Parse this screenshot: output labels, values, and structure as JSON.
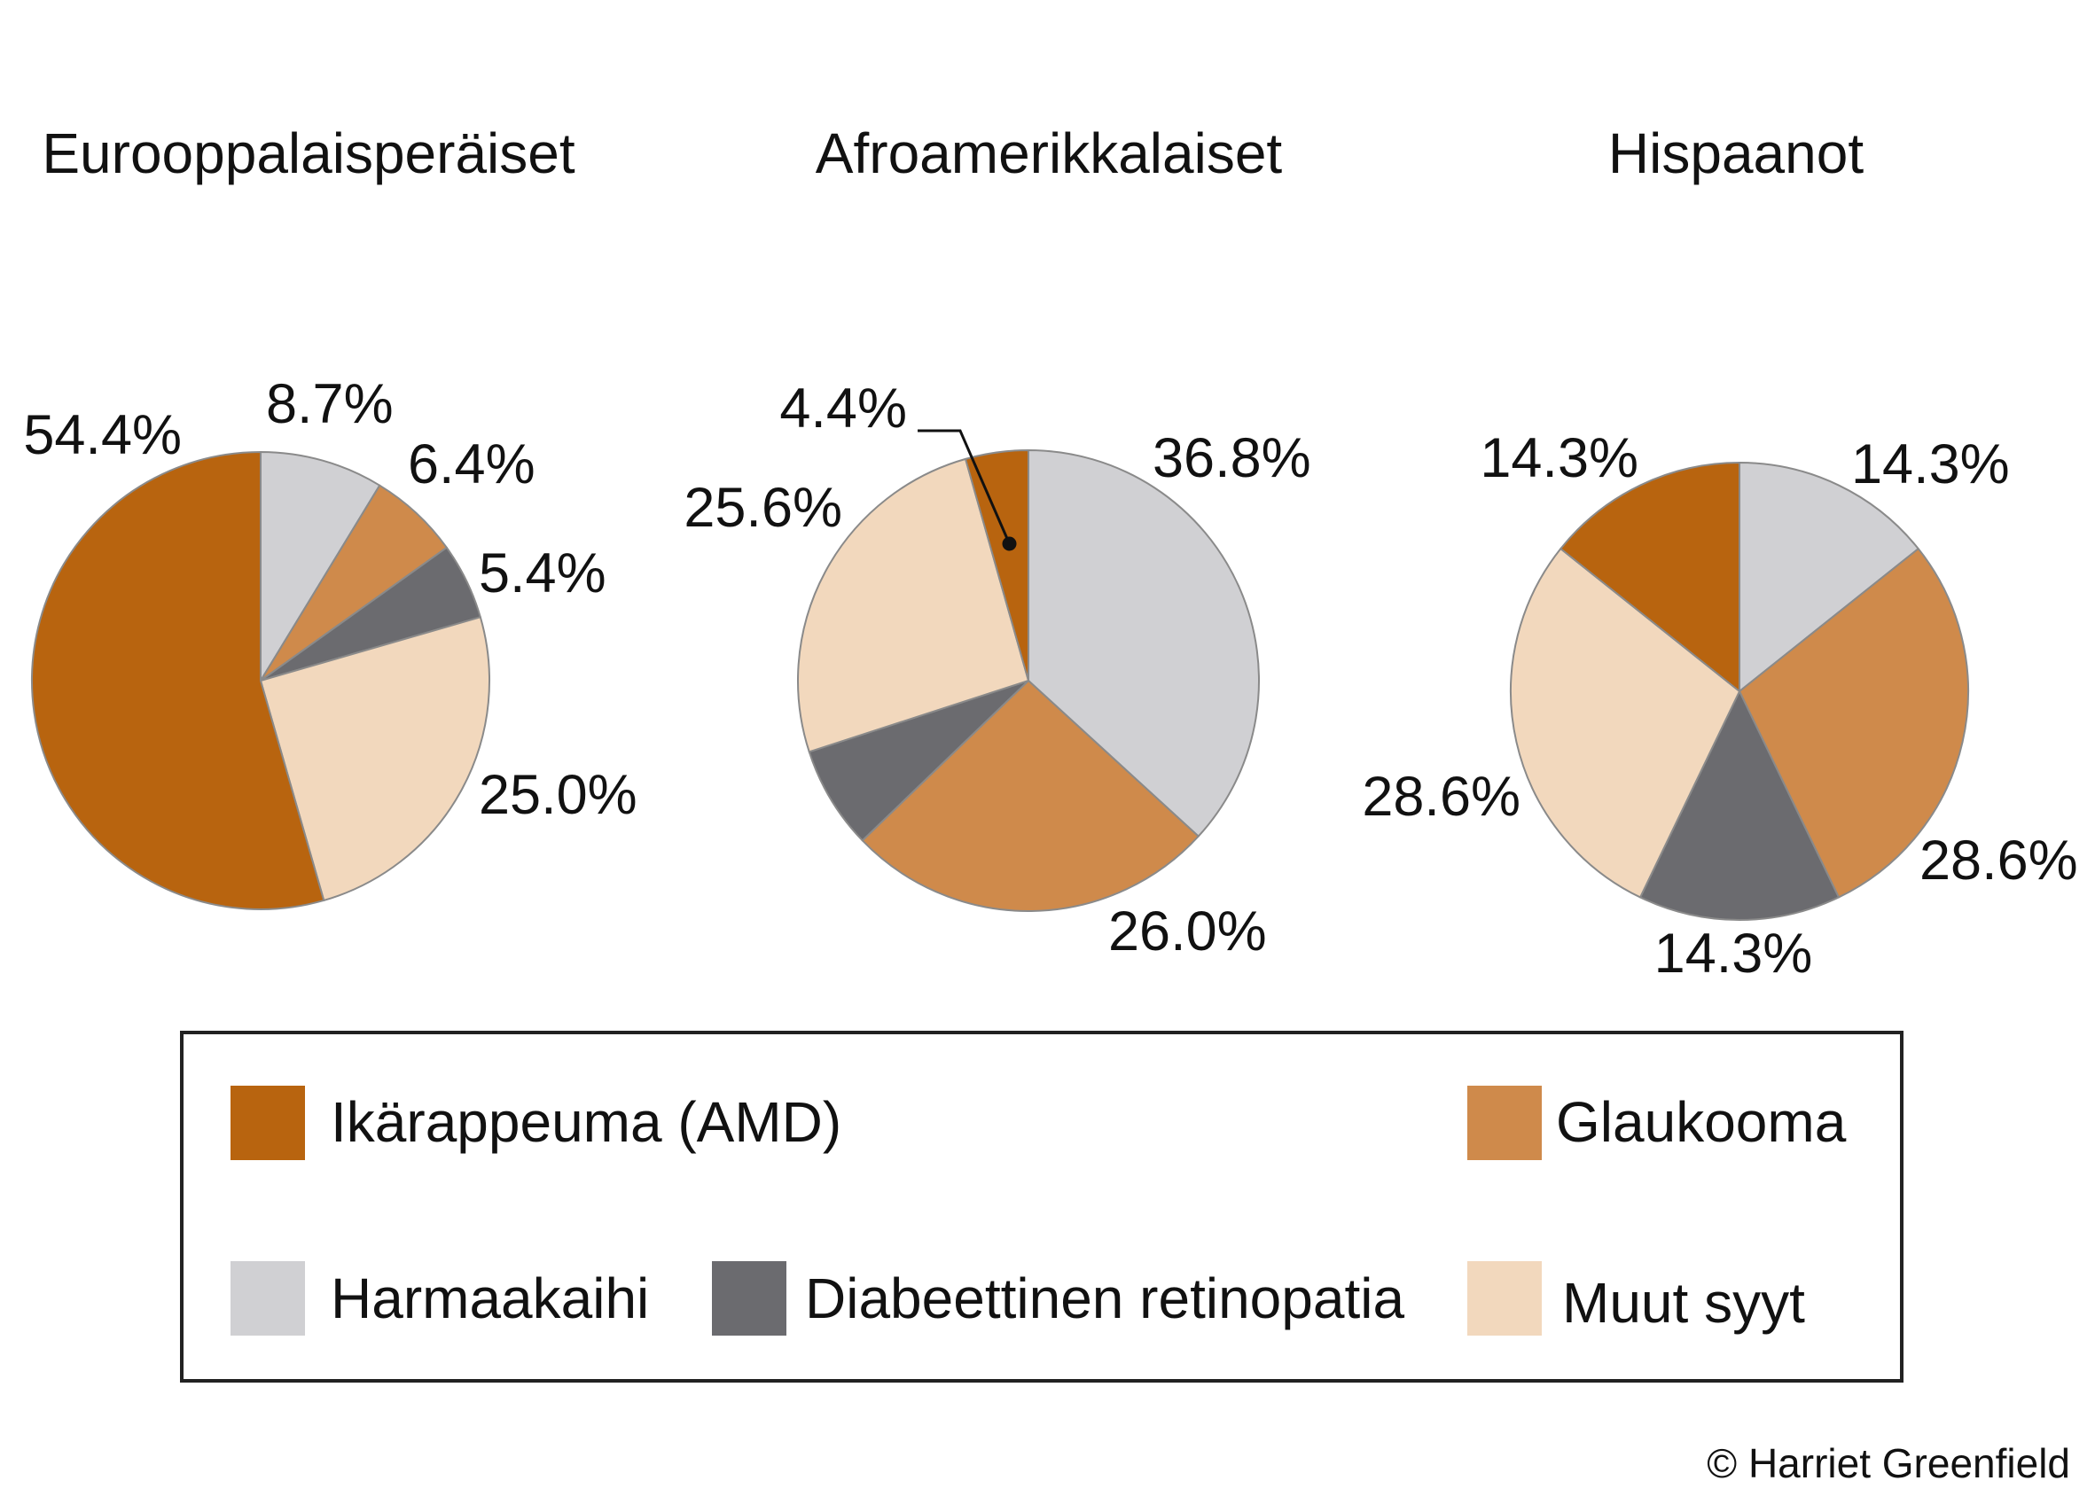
{
  "credit": "© Harriet Greenfield",
  "colors": {
    "amd": "#b8640f",
    "glaucoma": "#cf8a4b",
    "cataract": "#d0d0d3",
    "diabetic": "#6b6b6f",
    "other": "#f2d8bd",
    "outline": "#8a8a8a"
  },
  "legend": {
    "items": [
      {
        "key": "amd",
        "label": "Ikärappeuma (AMD)"
      },
      {
        "key": "glaucoma",
        "label": "Glaukooma"
      },
      {
        "key": "cataract",
        "label": "Harmaakaihi"
      },
      {
        "key": "diabetic",
        "label": "Diabeettinen retinopatia"
      },
      {
        "key": "other",
        "label": "Muut syyt"
      }
    ]
  },
  "chart_data": [
    {
      "type": "pie",
      "title": "Eurooppalaisperäiset",
      "slices": [
        {
          "key": "cataract",
          "value": 8.7,
          "label": "8.7%"
        },
        {
          "key": "glaucoma",
          "value": 6.4,
          "label": "6.4%"
        },
        {
          "key": "diabetic",
          "value": 5.4,
          "label": "5.4%"
        },
        {
          "key": "other",
          "value": 25.0,
          "label": "25.0%"
        },
        {
          "key": "amd",
          "value": 54.4,
          "label": "54.4%"
        }
      ]
    },
    {
      "type": "pie",
      "title": "Afroamerikkalaiset",
      "slices": [
        {
          "key": "cataract",
          "value": 36.8,
          "label": "36.8%"
        },
        {
          "key": "glaucoma",
          "value": 26.0,
          "label": "26.0%"
        },
        {
          "key": "diabetic",
          "value": 7.2,
          "label": ""
        },
        {
          "key": "other",
          "value": 25.6,
          "label": "25.6%"
        },
        {
          "key": "amd",
          "value": 4.4,
          "label": "4.4%"
        }
      ]
    },
    {
      "type": "pie",
      "title": "Hispaanot",
      "slices": [
        {
          "key": "cataract",
          "value": 14.3,
          "label": "14.3%"
        },
        {
          "key": "glaucoma",
          "value": 28.6,
          "label": "28.6%"
        },
        {
          "key": "diabetic",
          "value": 14.3,
          "label": "14.3%"
        },
        {
          "key": "other",
          "value": 28.6,
          "label": "28.6%"
        },
        {
          "key": "amd",
          "value": 14.3,
          "label": "14.3%"
        }
      ]
    }
  ]
}
